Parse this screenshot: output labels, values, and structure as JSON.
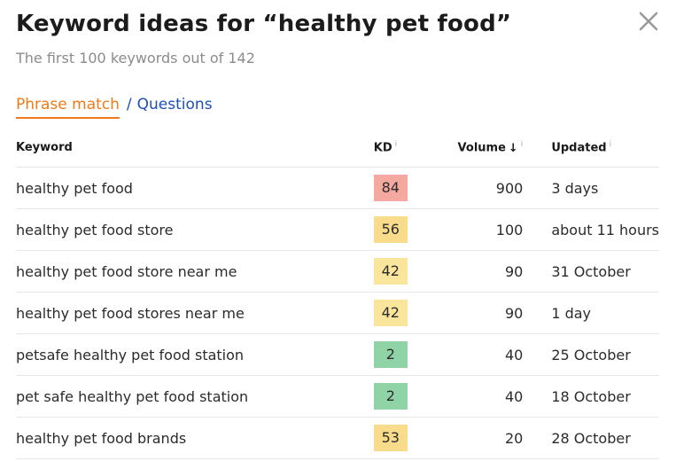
{
  "header": {
    "title": "Keyword ideas for “healthy pet food”",
    "subtitle": "The first 100 keywords out of 142"
  },
  "tabs": {
    "active": "Phrase match",
    "separator": "/",
    "other": "Questions"
  },
  "table": {
    "columns": {
      "keyword": "Keyword",
      "kd": "KD",
      "volume": "Volume",
      "updated": "Updated",
      "info_glyph": "i",
      "sort_arrow": "↓"
    },
    "rows": [
      {
        "keyword": "healthy pet food",
        "kd": "84",
        "kd_color": "#f4a8a0",
        "volume": "900",
        "updated": "3 days"
      },
      {
        "keyword": "healthy pet food store",
        "kd": "56",
        "kd_color": "#f9dc8b",
        "volume": "100",
        "updated": "about 11 hours"
      },
      {
        "keyword": "healthy pet food store near me",
        "kd": "42",
        "kd_color": "#fae59c",
        "volume": "90",
        "updated": "31 October"
      },
      {
        "keyword": "healthy pet food stores near me",
        "kd": "42",
        "kd_color": "#fae59c",
        "volume": "90",
        "updated": "1 day"
      },
      {
        "keyword": "petsafe healthy pet food station",
        "kd": "2",
        "kd_color": "#8fd3a7",
        "volume": "40",
        "updated": "25 October"
      },
      {
        "keyword": "pet safe healthy pet food station",
        "kd": "2",
        "kd_color": "#8fd3a7",
        "volume": "40",
        "updated": "18 October"
      },
      {
        "keyword": "healthy pet food brands",
        "kd": "53",
        "kd_color": "#f9dc8b",
        "volume": "20",
        "updated": "28 October"
      }
    ]
  },
  "icons": {
    "close": "close-icon",
    "info": "info-icon",
    "sort": "sort-desc-arrow-icon"
  }
}
